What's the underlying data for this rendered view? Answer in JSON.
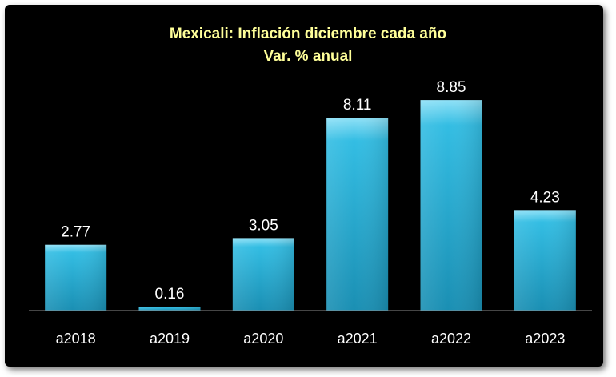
{
  "chart_data": {
    "type": "bar",
    "title": "Mexicali: Inflación diciembre cada año",
    "subtitle": "Var. % anual",
    "categories": [
      "a2018",
      "a2019",
      "a2020",
      "a2021",
      "a2022",
      "a2023"
    ],
    "values": [
      2.77,
      0.16,
      3.05,
      8.11,
      8.85,
      4.23
    ],
    "value_labels": [
      "2.77",
      "0.16",
      "3.05",
      "8.11",
      "8.85",
      "4.23"
    ],
    "xlabel": "",
    "ylabel": "",
    "ylim": [
      0,
      10.2
    ],
    "grid": false,
    "legend": "none",
    "colors": {
      "background": "#000000",
      "bar_top": "#8fe1f7",
      "bar_mid": "#33bde3",
      "bar_bottom": "#1a8fb3",
      "title": "#ffff99",
      "text": "#ffffff",
      "axis": "#8c8c8c"
    }
  }
}
